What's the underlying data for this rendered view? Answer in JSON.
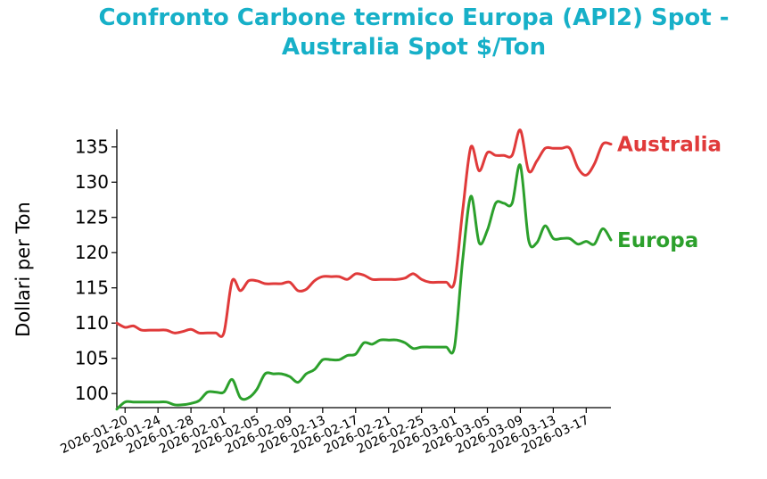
{
  "chart_data": {
    "type": "line",
    "title_lines": [
      "Confronto Carbone termico Europa (API2) Spot -",
      "Australia Spot $/Ton"
    ],
    "xlabel": "",
    "ylabel": "Dollari per Ton",
    "ylim": [
      98,
      137.5
    ],
    "yticks": [
      100,
      105,
      110,
      115,
      120,
      125,
      130,
      135
    ],
    "xlim": [
      "2026-01-19",
      "2026-03-20"
    ],
    "xticks": [
      "2026-01-20",
      "2026-01-24",
      "2026-01-28",
      "2026-02-01",
      "2026-02-05",
      "2026-02-09",
      "2026-02-13",
      "2026-02-17",
      "2026-02-21",
      "2026-02-25",
      "2026-03-01",
      "2026-03-05",
      "2026-03-09",
      "2026-03-13",
      "2026-03-17"
    ],
    "grid": false,
    "legend": "direct labels at right end of each line",
    "series": [
      {
        "name": "Australia",
        "color": "#e03a3a",
        "points": [
          [
            "2026-01-19",
            110.0
          ],
          [
            "2026-01-20",
            109.4
          ],
          [
            "2026-01-21",
            109.6
          ],
          [
            "2026-01-22",
            109.0
          ],
          [
            "2026-01-23",
            109.0
          ],
          [
            "2026-01-24",
            109.0
          ],
          [
            "2026-01-25",
            109.0
          ],
          [
            "2026-01-26",
            108.6
          ],
          [
            "2026-01-27",
            108.8
          ],
          [
            "2026-01-28",
            109.1
          ],
          [
            "2026-01-29",
            108.6
          ],
          [
            "2026-01-30",
            108.6
          ],
          [
            "2026-01-31",
            108.6
          ],
          [
            "2026-02-01",
            108.6
          ],
          [
            "2026-02-02",
            116.0
          ],
          [
            "2026-02-03",
            114.6
          ],
          [
            "2026-02-04",
            116.0
          ],
          [
            "2026-02-05",
            116.0
          ],
          [
            "2026-02-06",
            115.6
          ],
          [
            "2026-02-07",
            115.6
          ],
          [
            "2026-02-08",
            115.6
          ],
          [
            "2026-02-09",
            115.8
          ],
          [
            "2026-02-10",
            114.6
          ],
          [
            "2026-02-11",
            114.8
          ],
          [
            "2026-02-12",
            116.0
          ],
          [
            "2026-02-13",
            116.6
          ],
          [
            "2026-02-14",
            116.6
          ],
          [
            "2026-02-15",
            116.6
          ],
          [
            "2026-02-16",
            116.2
          ],
          [
            "2026-02-17",
            117.0
          ],
          [
            "2026-02-18",
            116.8
          ],
          [
            "2026-02-19",
            116.2
          ],
          [
            "2026-02-20",
            116.2
          ],
          [
            "2026-02-21",
            116.2
          ],
          [
            "2026-02-22",
            116.2
          ],
          [
            "2026-02-23",
            116.4
          ],
          [
            "2026-02-24",
            117.0
          ],
          [
            "2026-02-25",
            116.2
          ],
          [
            "2026-02-26",
            115.8
          ],
          [
            "2026-02-27",
            115.8
          ],
          [
            "2026-02-28",
            115.8
          ],
          [
            "2026-03-01",
            115.8
          ],
          [
            "2026-03-02",
            126.0
          ],
          [
            "2026-03-03",
            135.0
          ],
          [
            "2026-03-04",
            131.6
          ],
          [
            "2026-03-05",
            134.2
          ],
          [
            "2026-03-06",
            133.8
          ],
          [
            "2026-03-07",
            133.8
          ],
          [
            "2026-03-08",
            133.8
          ],
          [
            "2026-03-09",
            137.4
          ],
          [
            "2026-03-10",
            131.6
          ],
          [
            "2026-03-11",
            133.0
          ],
          [
            "2026-03-12",
            134.8
          ],
          [
            "2026-03-13",
            134.8
          ],
          [
            "2026-03-14",
            134.8
          ],
          [
            "2026-03-15",
            134.8
          ],
          [
            "2026-03-16",
            132.0
          ],
          [
            "2026-03-17",
            131.0
          ],
          [
            "2026-03-18",
            132.6
          ],
          [
            "2026-03-19",
            135.4
          ],
          [
            "2026-03-20",
            135.4
          ]
        ]
      },
      {
        "name": "Europa",
        "color": "#2ca02c",
        "points": [
          [
            "2026-01-19",
            97.8
          ],
          [
            "2026-01-20",
            98.8
          ],
          [
            "2026-01-21",
            98.8
          ],
          [
            "2026-01-22",
            98.8
          ],
          [
            "2026-01-23",
            98.8
          ],
          [
            "2026-01-24",
            98.8
          ],
          [
            "2026-01-25",
            98.8
          ],
          [
            "2026-01-26",
            98.4
          ],
          [
            "2026-01-27",
            98.4
          ],
          [
            "2026-01-28",
            98.6
          ],
          [
            "2026-01-29",
            99.0
          ],
          [
            "2026-01-30",
            100.2
          ],
          [
            "2026-01-31",
            100.2
          ],
          [
            "2026-02-01",
            100.2
          ],
          [
            "2026-02-02",
            102.0
          ],
          [
            "2026-02-03",
            99.4
          ],
          [
            "2026-02-04",
            99.4
          ],
          [
            "2026-02-05",
            100.6
          ],
          [
            "2026-02-06",
            102.8
          ],
          [
            "2026-02-07",
            102.8
          ],
          [
            "2026-02-08",
            102.8
          ],
          [
            "2026-02-09",
            102.4
          ],
          [
            "2026-02-10",
            101.6
          ],
          [
            "2026-02-11",
            102.8
          ],
          [
            "2026-02-12",
            103.4
          ],
          [
            "2026-02-13",
            104.8
          ],
          [
            "2026-02-14",
            104.8
          ],
          [
            "2026-02-15",
            104.8
          ],
          [
            "2026-02-16",
            105.4
          ],
          [
            "2026-02-17",
            105.6
          ],
          [
            "2026-02-18",
            107.2
          ],
          [
            "2026-02-19",
            107.0
          ],
          [
            "2026-02-20",
            107.6
          ],
          [
            "2026-02-21",
            107.6
          ],
          [
            "2026-02-22",
            107.6
          ],
          [
            "2026-02-23",
            107.2
          ],
          [
            "2026-02-24",
            106.4
          ],
          [
            "2026-02-25",
            106.6
          ],
          [
            "2026-02-26",
            106.6
          ],
          [
            "2026-02-27",
            106.6
          ],
          [
            "2026-02-28",
            106.6
          ],
          [
            "2026-03-01",
            106.6
          ],
          [
            "2026-03-02",
            119.0
          ],
          [
            "2026-03-03",
            128.0
          ],
          [
            "2026-03-04",
            121.4
          ],
          [
            "2026-03-05",
            123.2
          ],
          [
            "2026-03-06",
            127.0
          ],
          [
            "2026-03-07",
            127.0
          ],
          [
            "2026-03-08",
            127.0
          ],
          [
            "2026-03-09",
            132.4
          ],
          [
            "2026-03-10",
            121.8
          ],
          [
            "2026-03-11",
            121.4
          ],
          [
            "2026-03-12",
            123.8
          ],
          [
            "2026-03-13",
            122.0
          ],
          [
            "2026-03-14",
            122.0
          ],
          [
            "2026-03-15",
            122.0
          ],
          [
            "2026-03-16",
            121.2
          ],
          [
            "2026-03-17",
            121.6
          ],
          [
            "2026-03-18",
            121.2
          ],
          [
            "2026-03-19",
            123.4
          ],
          [
            "2026-03-20",
            121.8
          ]
        ]
      }
    ]
  }
}
